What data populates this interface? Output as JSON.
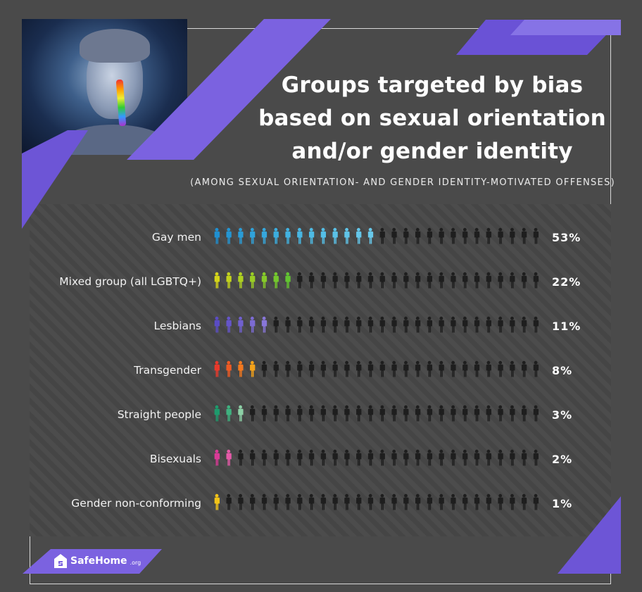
{
  "title_lines": [
    "Groups targeted by bias",
    "based on sexual orientation",
    "and/or gender identity"
  ],
  "subtitle": "(AMONG SEXUAL ORIENTATION- AND GENDER IDENTITY-MOTIVATED OFFENSES)",
  "brand": {
    "name": "SafeHome",
    "tld": ".org"
  },
  "photo": {
    "icon": "portrait-with-rainbow-tear-icon"
  },
  "colors": {
    "background": "#4a4a4a",
    "accent_purple": "#7b62e0",
    "inactive_figure": "#1e1e1e"
  },
  "chart_data": {
    "type": "bar",
    "unit_icon": "person-icon",
    "icons_per_row": 28,
    "categories": [
      "Gay men",
      "Mixed group (all LGBTQ+)",
      "Lesbians",
      "Transgender",
      "Straight people",
      "Bisexuals",
      "Gender non-conforming"
    ],
    "values": [
      53,
      22,
      11,
      8,
      3,
      2,
      1
    ],
    "value_labels": [
      "53%",
      "22%",
      "11%",
      "8%",
      "3%",
      "2%",
      "1%"
    ],
    "highlighted_icons": [
      14,
      7,
      5,
      4,
      3,
      2,
      1
    ],
    "icon_colors": [
      [
        "#1f8fd0",
        "#2496d3",
        "#2a9cd6",
        "#30a2d9",
        "#36a7dc",
        "#3cadde",
        "#42b2e0",
        "#48b6e2",
        "#4ebae4",
        "#54bee6",
        "#5ac1e7",
        "#60c4e8",
        "#64c6e9",
        "#68c8ea"
      ],
      [
        "#d4d419",
        "#c2d21d",
        "#aed021",
        "#9acd25",
        "#86ca29",
        "#74c72d",
        "#62c431"
      ],
      [
        "#5a4cc4",
        "#6555c9",
        "#7060ce",
        "#7c6bd3",
        "#8876d8"
      ],
      [
        "#e8392b",
        "#ee5a24",
        "#f2781f",
        "#f4a21a"
      ],
      [
        "#1e9a6c",
        "#3fb17f",
        "#8dd0a6"
      ],
      [
        "#d93a96",
        "#e45aa8"
      ],
      [
        "#f2c318"
      ]
    ]
  }
}
